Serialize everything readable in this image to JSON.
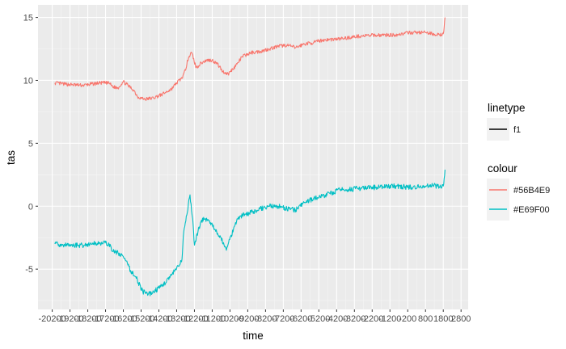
{
  "chart_data": {
    "type": "line",
    "xlabel": "time",
    "ylabel": "tas",
    "x_tick_labels": [
      "-20200",
      "-19200",
      "-18200",
      "-17200",
      "-16200",
      "-15200",
      "-14200",
      "-13200",
      "-12200",
      "-11200",
      "-10200",
      "-9200",
      "-8200",
      "-7200",
      "-6200",
      "-5200",
      "-4200",
      "-3200",
      "-2200",
      "-1200",
      "-200",
      "800",
      "1800",
      "2800"
    ],
    "x_ticks": [
      -20200,
      -19200,
      -18200,
      -17200,
      -16200,
      -15200,
      -14200,
      -13200,
      -12200,
      -11200,
      -10200,
      -9200,
      -8200,
      -7200,
      -6200,
      -5200,
      -4200,
      -3200,
      -2200,
      -1200,
      -200,
      800,
      1800,
      2800
    ],
    "xlim": [
      -21000,
      3200
    ],
    "y_tick_labels": [
      "-5",
      "0",
      "5",
      "10",
      "15"
    ],
    "y_ticks": [
      -5,
      0,
      5,
      10,
      15
    ],
    "ylim": [
      -8.2,
      16.0
    ],
    "grid": true,
    "legend": {
      "placement": "right",
      "linetype_title": "linetype",
      "linetype_items": [
        {
          "label": "f1",
          "color": "#000000"
        }
      ],
      "colour_title": "colour",
      "colour_items": [
        {
          "label": "#56B4E9",
          "color": "#F8766D"
        },
        {
          "label": "#E69F00",
          "color": "#00BFC4"
        }
      ]
    },
    "series": [
      {
        "color": "#F8766D",
        "x": [
          -20050,
          -19500,
          -18500,
          -17500,
          -17000,
          -16800,
          -16500,
          -16200,
          -15600,
          -15400,
          -15000,
          -14500,
          -14000,
          -13500,
          -13200,
          -12900,
          -12700,
          -12600,
          -12500,
          -12350,
          -12100,
          -11800,
          -11500,
          -11200,
          -10900,
          -10600,
          -10300,
          -10050,
          -9800,
          -9500,
          -9000,
          -8500,
          -8000,
          -7500,
          -7000,
          -6500,
          -6000,
          -5500,
          -5000,
          -4000,
          -3000,
          -2000,
          -1000,
          0,
          800,
          1200,
          1600,
          1800,
          1850,
          1900
        ],
        "y": [
          9.8,
          9.7,
          9.6,
          9.8,
          9.8,
          9.5,
          9.4,
          9.9,
          9.2,
          8.7,
          8.5,
          8.6,
          8.9,
          9.3,
          9.8,
          10.2,
          10.8,
          11.6,
          11.9,
          12.2,
          11.0,
          11.4,
          11.6,
          11.6,
          11.3,
          10.7,
          10.5,
          10.9,
          11.3,
          11.9,
          12.2,
          12.3,
          12.5,
          12.7,
          12.8,
          12.6,
          12.9,
          13.0,
          13.2,
          13.3,
          13.5,
          13.6,
          13.6,
          13.8,
          13.8,
          13.7,
          13.6,
          13.7,
          14.2,
          15.0
        ]
      },
      {
        "color": "#00BFC4",
        "x": [
          -20050,
          -19500,
          -18500,
          -17500,
          -17000,
          -16800,
          -16500,
          -16200,
          -15800,
          -15500,
          -15100,
          -14800,
          -14500,
          -14000,
          -13500,
          -13000,
          -12900,
          -12800,
          -12600,
          -12450,
          -12300,
          -12200,
          -12000,
          -11800,
          -11600,
          -11300,
          -11000,
          -10700,
          -10400,
          -10300,
          -10000,
          -9800,
          -9500,
          -9000,
          -8500,
          -8000,
          -7500,
          -7000,
          -6500,
          -6000,
          -5500,
          -5000,
          -4000,
          -3000,
          -2000,
          -1000,
          0,
          800,
          1200,
          1600,
          1800,
          1850,
          1900
        ],
        "y": [
          -3.0,
          -3.1,
          -3.1,
          -2.9,
          -3.0,
          -3.6,
          -3.7,
          -4.0,
          -5.1,
          -5.6,
          -6.8,
          -7.0,
          -6.8,
          -6.3,
          -5.5,
          -4.6,
          -4.2,
          -2.0,
          -0.5,
          0.9,
          -1.0,
          -3.1,
          -2.0,
          -1.1,
          -1.0,
          -1.3,
          -2.0,
          -2.5,
          -3.5,
          -3.0,
          -1.8,
          -1.0,
          -0.7,
          -0.5,
          -0.2,
          0.0,
          0.0,
          -0.2,
          -0.3,
          0.3,
          0.6,
          0.8,
          1.3,
          1.4,
          1.5,
          1.6,
          1.5,
          1.6,
          1.7,
          1.5,
          1.6,
          2.2,
          2.9
        ]
      }
    ]
  }
}
